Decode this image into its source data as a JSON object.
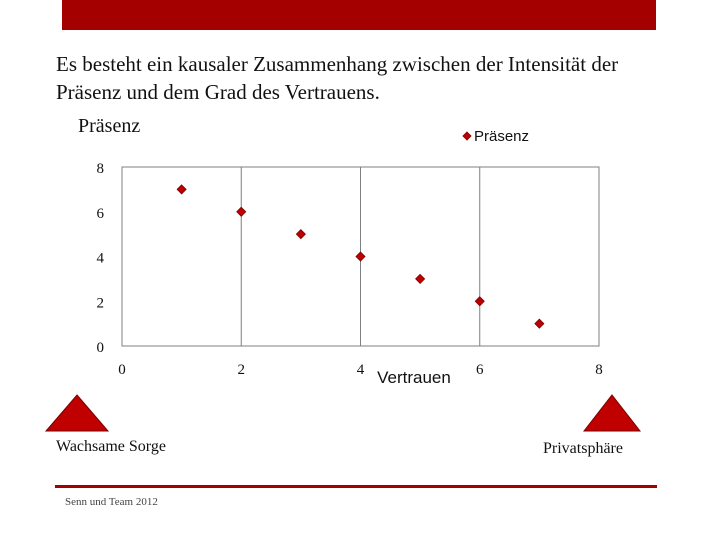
{
  "slide": {
    "text": "Es besteht ein kausaler Zusammenhang zwischen der Intensität der Präsenz und dem Grad des Vertrauens.",
    "left_label": "Wachsame Sorge",
    "right_label": "Privatsphäre",
    "credit": "Senn und Team 2012",
    "accent_color": "#a50000"
  },
  "chart_data": {
    "type": "scatter",
    "title": "Präsenz",
    "xlabel": "Vertrauen",
    "ylabel": "",
    "xlim": [
      0,
      8
    ],
    "ylim": [
      0,
      8
    ],
    "xticks": [
      0,
      2,
      4,
      6,
      8
    ],
    "yticks": [
      0,
      2,
      4,
      6,
      8
    ],
    "grid": "vertical",
    "legend_position": "top-right",
    "series": [
      {
        "name": "Präsenz",
        "color": "#c00000",
        "x": [
          1,
          2,
          3,
          4,
          5,
          6,
          7
        ],
        "y": [
          7,
          6,
          5,
          4,
          3,
          2,
          1
        ]
      }
    ]
  }
}
